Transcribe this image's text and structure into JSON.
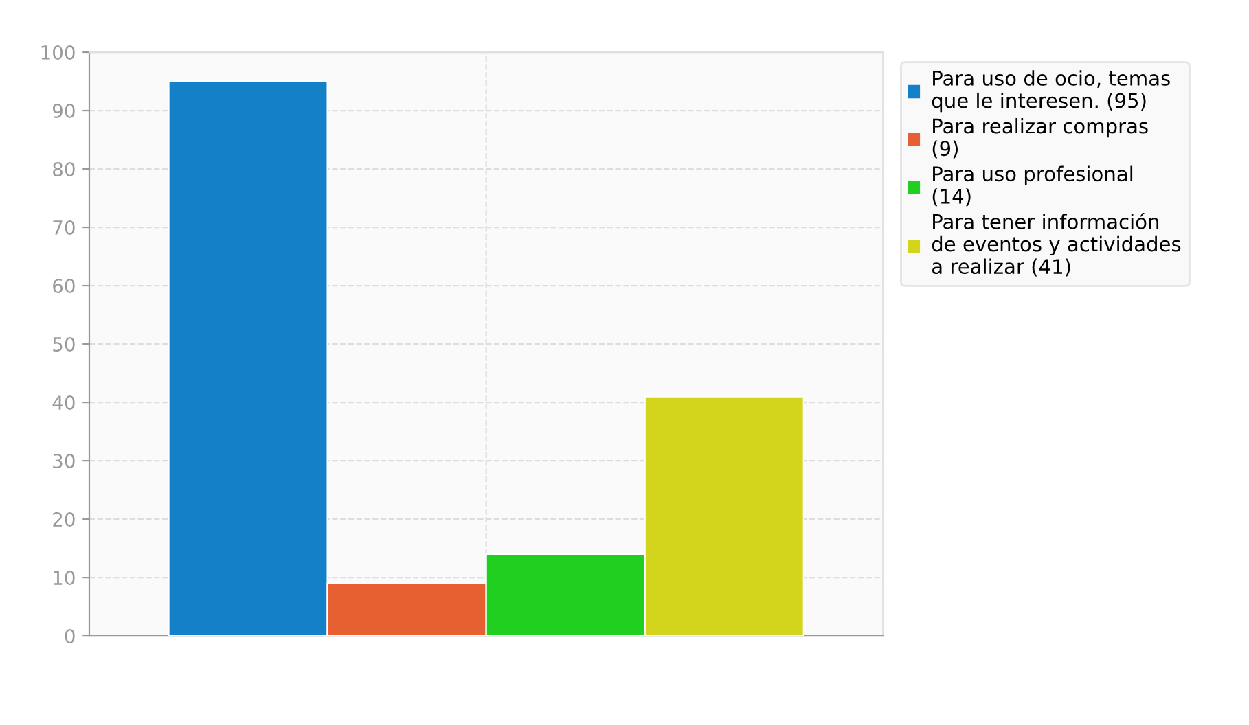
{
  "chart_data": {
    "type": "bar",
    "categories": [
      null
    ],
    "series": [
      {
        "name": "Para uso de ocio, temas que le interesen. (95)",
        "color": "#1380c8",
        "values": [
          95
        ]
      },
      {
        "name": "Para realizar compras (9)",
        "color": "#e66032",
        "values": [
          9
        ]
      },
      {
        "name": "Para uso profesional (14)",
        "color": "#20cf20",
        "values": [
          14
        ]
      },
      {
        "name": "Para tener información de eventos y actividades a realizar (41)",
        "color": "#d3d41c",
        "values": [
          41
        ]
      }
    ],
    "ylim": [
      0,
      100
    ],
    "yticks": [
      0,
      10,
      20,
      30,
      40,
      50,
      60,
      70,
      80,
      90,
      100
    ],
    "grid": true,
    "legend": "top right"
  }
}
